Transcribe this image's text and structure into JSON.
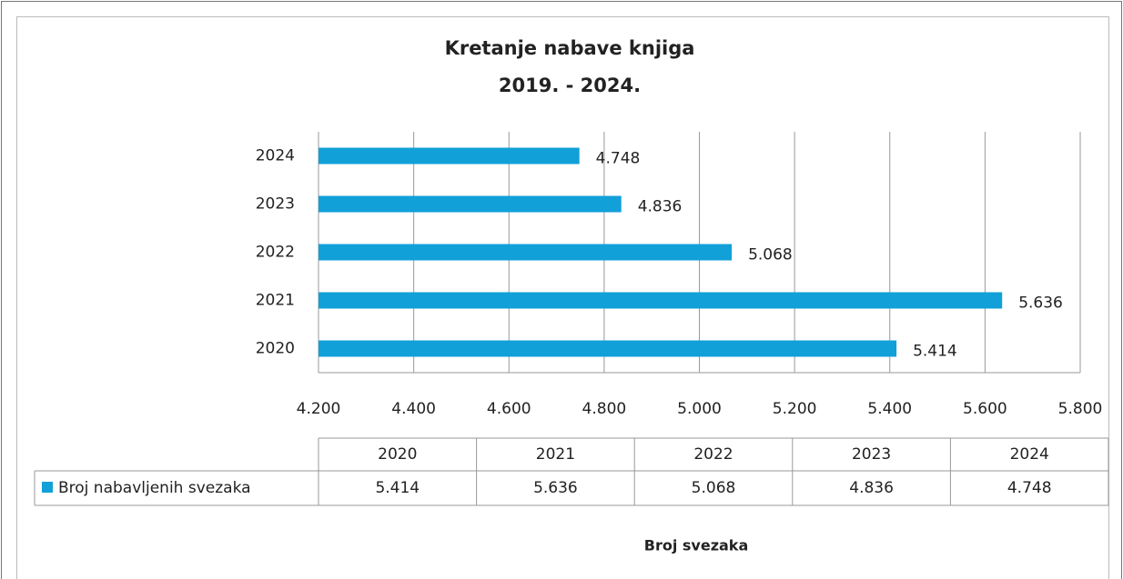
{
  "chart_data": {
    "type": "bar",
    "orientation": "horizontal",
    "title": "Kretanje nabave knjiga",
    "subtitle": "2019. - 2024.",
    "x_label": "Broj svezaka",
    "categories": [
      "2020",
      "2021",
      "2022",
      "2023",
      "2024"
    ],
    "series": [
      {
        "name": "Broj nabavljenih svezaka",
        "color": "#11a0d8",
        "values": [
          5414,
          5636,
          5068,
          4836,
          4748
        ],
        "value_labels": [
          "5.414",
          "5.636",
          "5.068",
          "4.836",
          "4.748"
        ]
      }
    ],
    "xlim": [
      4200,
      5800
    ],
    "xticks": [
      {
        "value": 4200,
        "label": "4.200"
      },
      {
        "value": 4400,
        "label": "4.400"
      },
      {
        "value": 4600,
        "label": "4.600"
      },
      {
        "value": 4800,
        "label": "4.800"
      },
      {
        "value": 5000,
        "label": "5.000"
      },
      {
        "value": 5200,
        "label": "5.200"
      },
      {
        "value": 5400,
        "label": "5.400"
      },
      {
        "value": 5600,
        "label": "5.600"
      },
      {
        "value": 5800,
        "label": "5.800"
      }
    ],
    "grid": true,
    "data_table": true
  }
}
